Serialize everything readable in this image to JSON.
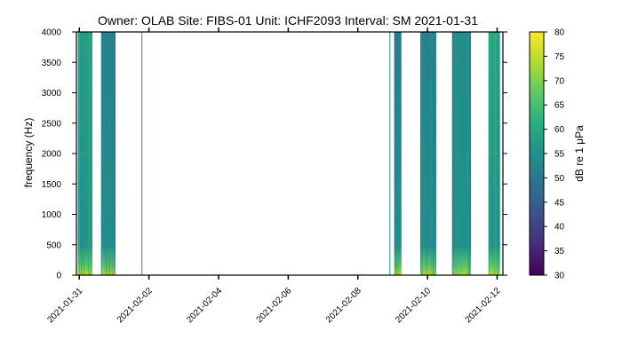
{
  "chart_data": {
    "type": "heatmap",
    "title": "Owner: OLAB   Site: FIBS-01   Unit: ICHF2093   Interval: SM 2021-01-31",
    "xlabel": "",
    "ylabel": "frequency (Hz)",
    "x_range": [
      "2021-01-30T22:00",
      "2021-02-12T04:00"
    ],
    "x_ticks": [
      "2021-01-31",
      "2021-02-02",
      "2021-02-04",
      "2021-02-06",
      "2021-02-08",
      "2021-02-10",
      "2021-02-12"
    ],
    "ylim": [
      0,
      4000
    ],
    "y_ticks": [
      0,
      500,
      1000,
      1500,
      2000,
      2500,
      3000,
      3500,
      4000
    ],
    "colorbar": {
      "label": "dB re 1 μPa",
      "range": [
        30,
        80
      ],
      "ticks": [
        30,
        35,
        40,
        45,
        50,
        55,
        60,
        65,
        70,
        75,
        80
      ],
      "colormap": "viridis"
    },
    "segments": [
      {
        "start": "2021-01-30T23:00",
        "end": "2021-01-31T09:00",
        "level_db": 58
      },
      {
        "start": "2021-01-31T15:00",
        "end": "2021-02-01T01:00",
        "level_db": 52
      },
      {
        "start": "2021-02-01T18:50",
        "end": "2021-02-01T19:10",
        "level_db": 55
      },
      {
        "start": "2021-02-08T21:50",
        "end": "2021-02-08T22:10",
        "level_db": 55
      },
      {
        "start": "2021-02-09T01:00",
        "end": "2021-02-09T06:00",
        "level_db": 50
      },
      {
        "start": "2021-02-09T19:00",
        "end": "2021-02-10T06:00",
        "level_db": 52
      },
      {
        "start": "2021-02-10T17:00",
        "end": "2021-02-11T06:00",
        "level_db": 54
      },
      {
        "start": "2021-02-11T18:00",
        "end": "2021-02-12T02:00",
        "level_db": 60
      }
    ]
  }
}
